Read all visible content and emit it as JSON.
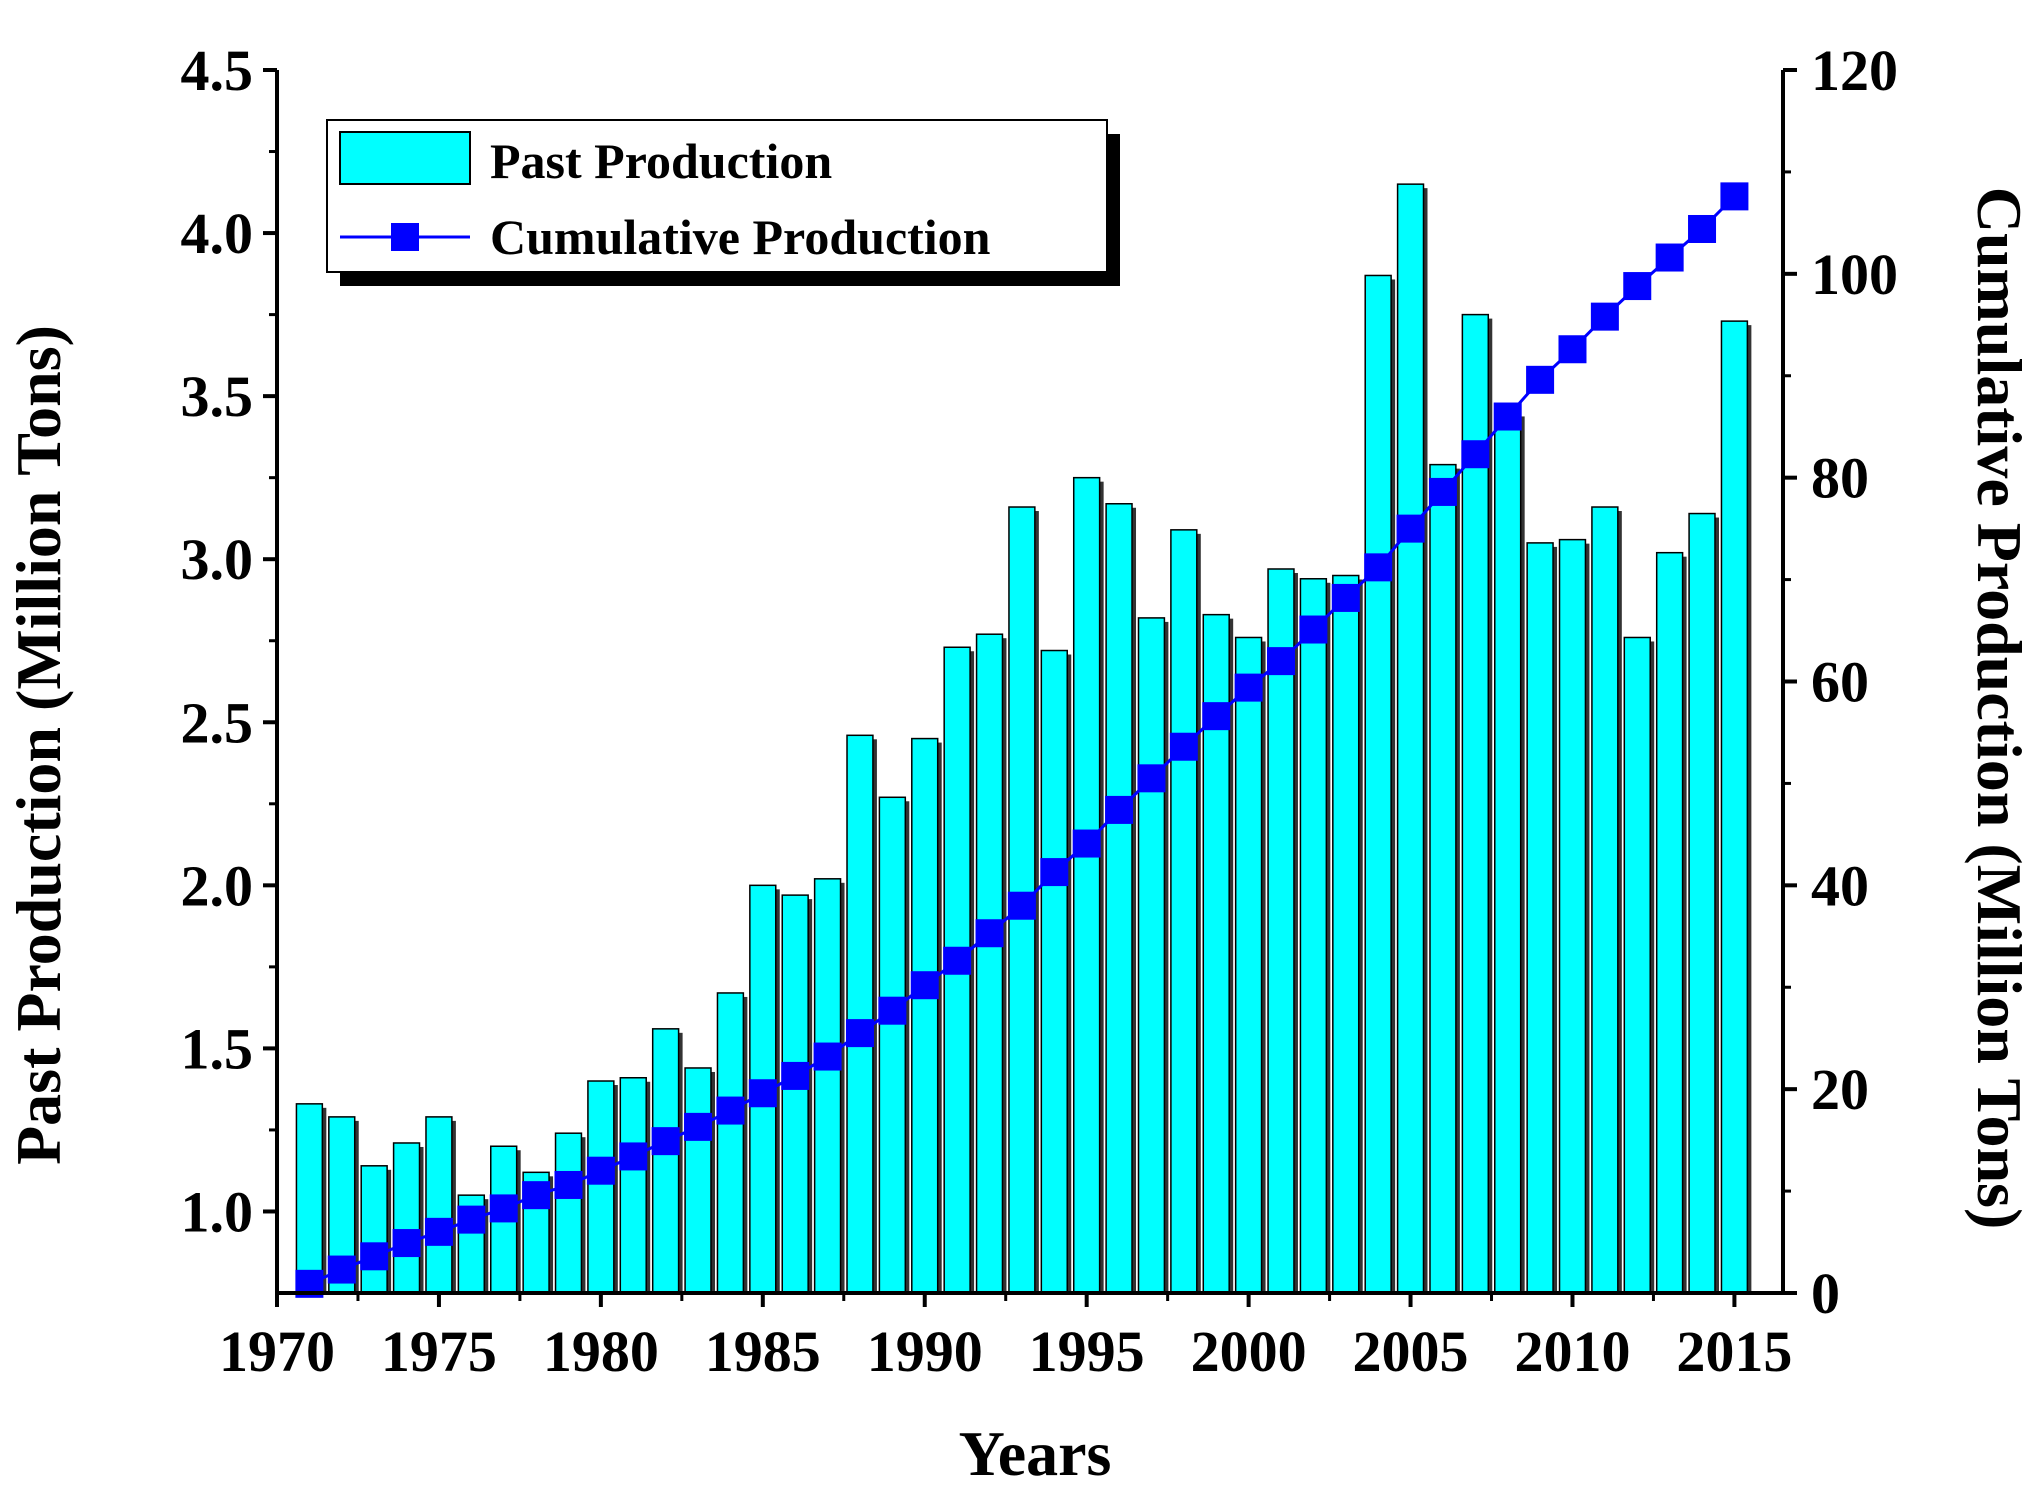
{
  "chart_data": {
    "type": "bar+line",
    "x_label": "Years",
    "left_axis": {
      "label": "Past Production (Million Tons)",
      "range": [
        0.75,
        4.5
      ],
      "ticks": [
        1.0,
        1.5,
        2.0,
        2.5,
        3.0,
        3.5,
        4.0,
        4.5
      ],
      "tick_labels": [
        "1.0",
        "1.5",
        "2.0",
        "2.5",
        "3.0",
        "3.5",
        "4.0",
        "4.5"
      ]
    },
    "right_axis": {
      "label": "Cumulative Production (Million Tons)",
      "range": [
        0,
        120
      ],
      "ticks": [
        0,
        20,
        40,
        60,
        80,
        100,
        120
      ],
      "tick_labels": [
        "0",
        "20",
        "40",
        "60",
        "80",
        "100",
        "120"
      ]
    },
    "x_axis": {
      "range": [
        1970,
        2016.5
      ],
      "ticks": [
        1970,
        1975,
        1980,
        1985,
        1990,
        1995,
        2000,
        2005,
        2010,
        2015
      ],
      "tick_labels": [
        "1970",
        "1975",
        "1980",
        "1985",
        "1990",
        "1995",
        "2000",
        "2005",
        "2010",
        "2015"
      ]
    },
    "years": [
      1971,
      1972,
      1973,
      1974,
      1975,
      1976,
      1977,
      1978,
      1979,
      1980,
      1981,
      1982,
      1983,
      1984,
      1985,
      1986,
      1987,
      1988,
      1989,
      1990,
      1991,
      1992,
      1993,
      1994,
      1995,
      1996,
      1997,
      1998,
      1999,
      2000,
      2001,
      2002,
      2003,
      2004,
      2005,
      2006,
      2007,
      2008,
      2009,
      2010,
      2011,
      2012,
      2013,
      2014,
      2015
    ],
    "series": [
      {
        "name": "Past Production",
        "type": "bar",
        "axis": "left",
        "color": "#00ffff",
        "values": [
          1.33,
          1.29,
          1.14,
          1.21,
          1.29,
          1.05,
          1.2,
          1.12,
          1.24,
          1.4,
          1.41,
          1.56,
          1.44,
          1.67,
          2.0,
          1.97,
          2.02,
          2.46,
          2.27,
          2.45,
          2.73,
          2.77,
          3.16,
          2.72,
          3.25,
          3.17,
          2.82,
          3.09,
          2.83,
          2.76,
          2.97,
          2.94,
          2.95,
          3.87,
          4.15,
          3.29,
          3.75,
          3.45,
          3.05,
          3.06,
          3.16,
          2.76,
          3.02,
          3.14,
          3.73
        ]
      },
      {
        "name": "Cumulative Production",
        "type": "line",
        "axis": "right",
        "color": "#0000ff",
        "marker": "square",
        "values": [
          0.9,
          2.3,
          3.6,
          4.9,
          6.0,
          7.2,
          8.3,
          9.6,
          10.6,
          12.0,
          13.4,
          14.9,
          16.3,
          17.9,
          19.6,
          21.3,
          23.2,
          25.5,
          27.7,
          30.2,
          32.6,
          35.3,
          38.0,
          41.3,
          44.1,
          47.4,
          50.5,
          53.6,
          56.6,
          59.4,
          62.0,
          65.1,
          68.2,
          71.2,
          75.0,
          78.6,
          82.3,
          86.0,
          89.6,
          92.6,
          95.8,
          98.8,
          101.6,
          104.4,
          107.6
        ]
      }
    ],
    "legend": {
      "position": "top-left",
      "entries": [
        "Past Production",
        "Cumulative Production"
      ]
    },
    "grid": false
  }
}
